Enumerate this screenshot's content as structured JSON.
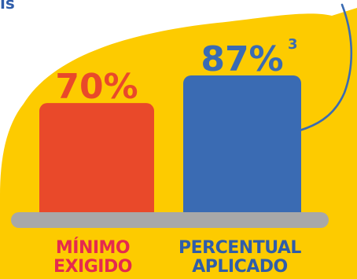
{
  "chart_data": {
    "type": "bar",
    "categories": [
      [
        "MÍNIMO",
        "EXIGIDO"
      ],
      [
        "PERCENTUAL",
        "APLICADO"
      ]
    ],
    "values": [
      70,
      87
    ],
    "value_labels": [
      "70%",
      "87%"
    ],
    "superscript_note": "3",
    "ylim": [
      0,
      100
    ],
    "grid": false,
    "legend": "none"
  },
  "top_fragment": "ıs",
  "colors": {
    "background_blob": "#FDCB00",
    "bar_minimo": "#E9492A",
    "bar_percentual": "#3A6BB3",
    "label_minimo": "#E52A4E",
    "label_percentual": "#2F5DAA",
    "baseline": "#A8A8A8",
    "accent_curve": "#3A6BB3"
  }
}
